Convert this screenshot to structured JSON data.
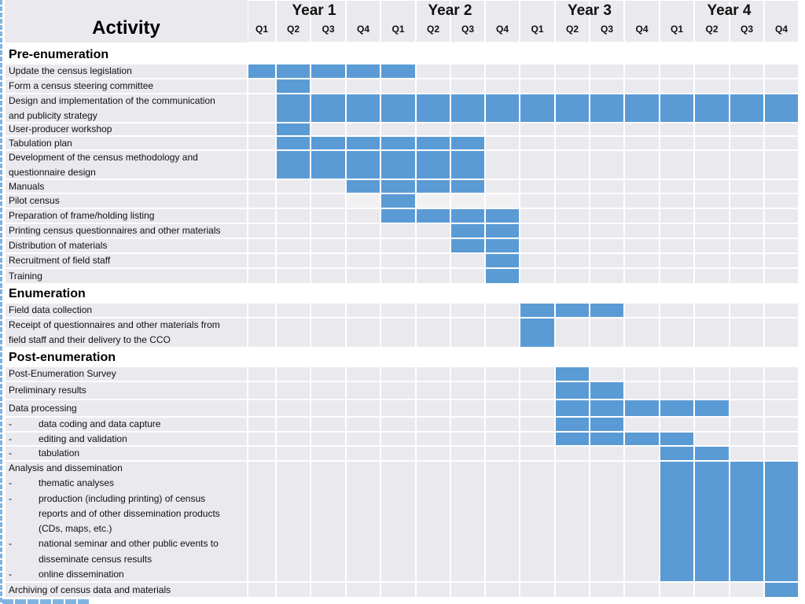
{
  "title": "Activity",
  "years": [
    "Year 1",
    "Year 2",
    "Year 3",
    "Year 4"
  ],
  "quarters": [
    "Q1",
    "Q2",
    "Q3",
    "Q4",
    "Q1",
    "Q2",
    "Q3",
    "Q4",
    "Q1",
    "Q2",
    "Q3",
    "Q4",
    "Q1",
    "Q2",
    "Q3",
    "Q4"
  ],
  "colors": {
    "bar": "#5b9bd5",
    "cell": "#e9e9ee",
    "cell_alt": "#f1f1f3"
  },
  "rows": [
    {
      "kind": "section",
      "label": "Pre-enumeration"
    },
    {
      "kind": "task",
      "lines": [
        "Update the census legislation"
      ],
      "start": 1,
      "end": 5
    },
    {
      "kind": "task",
      "lines": [
        "Form a census steering committee"
      ],
      "start": 2,
      "end": 2
    },
    {
      "kind": "task",
      "lines": [
        "Design and implementation of the communication",
        "and publicity strategy"
      ],
      "start": 2,
      "end": 16
    },
    {
      "kind": "task",
      "lines": [
        "User-producer workshop"
      ],
      "start": 2,
      "end": 2
    },
    {
      "kind": "task",
      "lines": [
        "Tabulation plan"
      ],
      "start": 2,
      "end": 7
    },
    {
      "kind": "task",
      "lines": [
        "Development of the census methodology and",
        "questionnaire design"
      ],
      "start": 2,
      "end": 7
    },
    {
      "kind": "task",
      "lines": [
        "Manuals"
      ],
      "start": 4,
      "end": 7
    },
    {
      "kind": "task",
      "lines": [
        "Pilot census"
      ],
      "start": 5,
      "end": 5
    },
    {
      "kind": "task",
      "lines": [
        "Preparation of frame/holding listing"
      ],
      "start": 5,
      "end": 8
    },
    {
      "kind": "task",
      "lines": [
        "Printing census questionnaires and other materials"
      ],
      "start": 7,
      "end": 8
    },
    {
      "kind": "task",
      "lines": [
        "Distribution of materials"
      ],
      "start": 7,
      "end": 8
    },
    {
      "kind": "task",
      "lines": [
        "Recruitment of field staff"
      ],
      "start": 8,
      "end": 8
    },
    {
      "kind": "task",
      "lines": [
        "Training"
      ],
      "start": 8,
      "end": 8
    },
    {
      "kind": "section",
      "label": "Enumeration"
    },
    {
      "kind": "task",
      "lines": [
        "Field data collection"
      ],
      "start": 9,
      "end": 11
    },
    {
      "kind": "task",
      "lines": [
        "Receipt of questionnaires and other materials from",
        "field staff and their delivery to the CCO"
      ],
      "start": 9,
      "end": 9
    },
    {
      "kind": "section",
      "label": "Post-enumeration"
    },
    {
      "kind": "task",
      "lines": [
        "Post-Enumeration Survey"
      ],
      "start": 10,
      "end": 10
    },
    {
      "kind": "task",
      "lines": [
        "Preliminary results"
      ],
      "start": 10,
      "end": 11
    },
    {
      "kind": "task",
      "lines": [
        "Data processing"
      ],
      "start": 10,
      "end": 14
    },
    {
      "kind": "task",
      "lines": [
        "-\tdata coding and data capture"
      ],
      "start": 10,
      "end": 11
    },
    {
      "kind": "task",
      "lines": [
        "-\tediting and validation"
      ],
      "start": 10,
      "end": 13
    },
    {
      "kind": "task",
      "lines": [
        "-\ttabulation"
      ],
      "start": 13,
      "end": 14
    },
    {
      "kind": "task",
      "lines": [
        "Analysis and dissemination",
        "-\tthematic analyses",
        "-\tproduction (including printing) of census",
        " \treports and of other dissemination products",
        " \t(CDs, maps, etc.)",
        "-\tnational seminar and other public events to",
        " \tdisseminate census results",
        "-\tonline dissemination"
      ],
      "start": 13,
      "end": 16
    },
    {
      "kind": "task",
      "lines": [
        "Archiving of census data and materials"
      ],
      "start": 16,
      "end": 16
    }
  ]
}
